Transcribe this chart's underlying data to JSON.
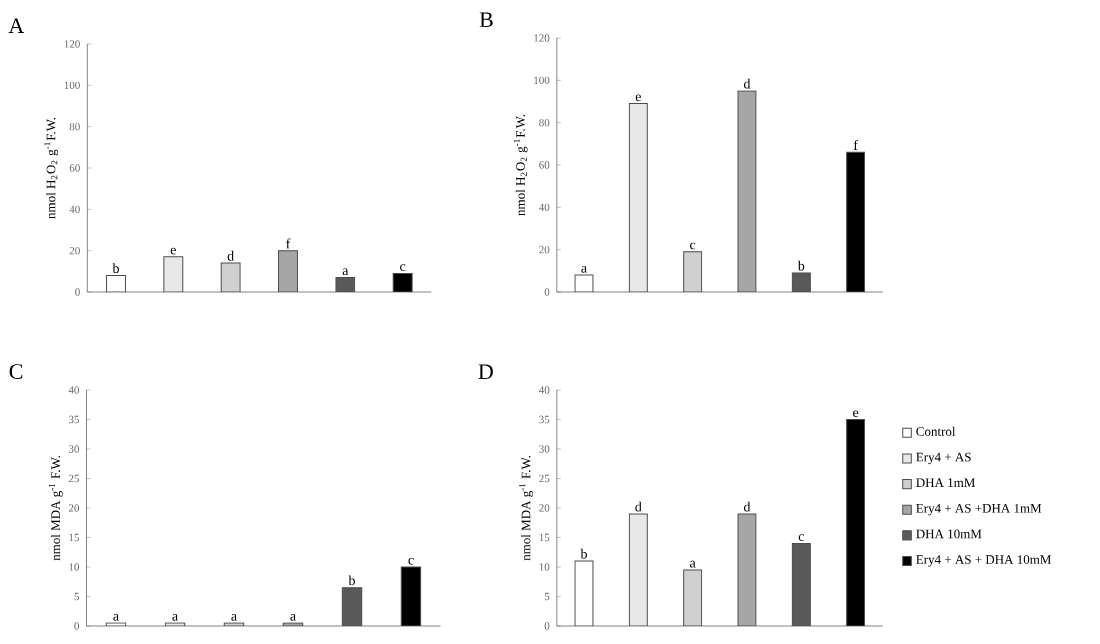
{
  "chart_data": [
    {
      "type": "bar",
      "title": "A",
      "ylabel": "nmol H$_{2}$O$_{2}$ g$^{-1}$F.W.",
      "categories": [
        null,
        null,
        null,
        null,
        null,
        null
      ],
      "ylim": [
        0,
        120
      ],
      "yticks": [
        0,
        20,
        40,
        60,
        80,
        100,
        120
      ],
      "tick_labels": "y",
      "legend": false,
      "series": [
        {
          "color": "#ffffff",
          "values": [
            8,
            null,
            null,
            null,
            null,
            null
          ],
          "value_labels": [
            "b",
            null,
            null,
            null,
            null,
            null
          ]
        },
        {
          "color": "#e8e8e8",
          "values": [
            null,
            17,
            null,
            null,
            null,
            null
          ],
          "value_labels": [
            null,
            "e",
            null,
            null,
            null,
            null
          ]
        },
        {
          "color": "#d0d0d0",
          "values": [
            null,
            null,
            14,
            null,
            null,
            null
          ],
          "value_labels": [
            null,
            null,
            "d",
            null,
            null,
            null
          ]
        },
        {
          "color": "#a6a6a6",
          "values": [
            null,
            null,
            null,
            20,
            null,
            null
          ],
          "value_labels": [
            null,
            null,
            null,
            "f",
            null,
            null
          ]
        },
        {
          "color": "#595959",
          "values": [
            null,
            null,
            null,
            null,
            7,
            null
          ],
          "value_labels": [
            null,
            null,
            null,
            null,
            "a",
            null
          ]
        },
        {
          "color": "#000000",
          "values": [
            null,
            null,
            null,
            null,
            null,
            9
          ],
          "value_labels": [
            null,
            null,
            null,
            null,
            null,
            "c"
          ]
        }
      ]
    },
    {
      "type": "bar",
      "title": "B",
      "ylabel": "nmol H$_{2}$O$_{2}$ g$^{-1}$F.W.",
      "categories": [
        null,
        null,
        null,
        null,
        null,
        null
      ],
      "ylim": [
        0,
        120
      ],
      "yticks": [
        0,
        20,
        40,
        60,
        80,
        100,
        120
      ],
      "tick_labels": "y",
      "legend": false,
      "series": [
        {
          "color": "#ffffff",
          "values": [
            8,
            null,
            null,
            null,
            null,
            null
          ],
          "value_labels": [
            "a",
            null,
            null,
            null,
            null,
            null
          ]
        },
        {
          "color": "#e8e8e8",
          "values": [
            null,
            89,
            null,
            null,
            null,
            null
          ],
          "value_labels": [
            null,
            "e",
            null,
            null,
            null,
            null
          ]
        },
        {
          "color": "#d0d0d0",
          "values": [
            null,
            null,
            19,
            null,
            null,
            null
          ],
          "value_labels": [
            null,
            null,
            "c",
            null,
            null,
            null
          ]
        },
        {
          "color": "#a6a6a6",
          "values": [
            null,
            null,
            null,
            95,
            null,
            null
          ],
          "value_labels": [
            null,
            null,
            null,
            "d",
            null,
            null
          ]
        },
        {
          "color": "#595959",
          "values": [
            null,
            null,
            null,
            null,
            9,
            null
          ],
          "value_labels": [
            null,
            null,
            null,
            null,
            "b",
            null
          ]
        },
        {
          "color": "#000000",
          "values": [
            null,
            null,
            null,
            null,
            null,
            66
          ],
          "value_labels": [
            null,
            null,
            null,
            null,
            null,
            "f"
          ]
        }
      ]
    },
    {
      "type": "bar",
      "title": "C",
      "ylabel": "nmol MDA g$^{-1}$ F.W.",
      "categories": [
        null,
        null,
        null,
        null,
        null,
        null
      ],
      "ylim": [
        0,
        40
      ],
      "yticks": [
        0,
        5,
        10,
        15,
        20,
        25,
        30,
        35,
        40
      ],
      "tick_labels": "y",
      "legend": false,
      "series": [
        {
          "color": "#ffffff",
          "values": [
            0.5,
            null,
            null,
            null,
            null,
            null
          ],
          "value_labels": [
            "a",
            null,
            null,
            null,
            null,
            null
          ]
        },
        {
          "color": "#e8e8e8",
          "values": [
            null,
            0.5,
            null,
            null,
            null,
            null
          ],
          "value_labels": [
            null,
            "a",
            null,
            null,
            null,
            null
          ]
        },
        {
          "color": "#d0d0d0",
          "values": [
            null,
            null,
            0.5,
            null,
            null,
            null
          ],
          "value_labels": [
            null,
            null,
            "a",
            null,
            null,
            null
          ]
        },
        {
          "color": "#a6a6a6",
          "values": [
            null,
            null,
            null,
            0.5,
            null,
            null
          ],
          "value_labels": [
            null,
            null,
            null,
            "a",
            null,
            null
          ]
        },
        {
          "color": "#595959",
          "values": [
            null,
            null,
            null,
            null,
            6.5,
            null
          ],
          "value_labels": [
            null,
            null,
            null,
            null,
            "b",
            null
          ]
        },
        {
          "color": "#000000",
          "values": [
            null,
            null,
            null,
            null,
            null,
            10
          ],
          "value_labels": [
            null,
            null,
            null,
            null,
            null,
            "c"
          ]
        }
      ]
    },
    {
      "type": "bar",
      "title": "D",
      "ylabel": "nmol MDA g$^{-1}$ F.W.",
      "categories": [
        null,
        null,
        null,
        null,
        null,
        null
      ],
      "ylim": [
        0,
        40
      ],
      "yticks": [
        0,
        5,
        10,
        15,
        20,
        25,
        30,
        35,
        40
      ],
      "tick_labels": "y",
      "legend": "right",
      "series": [
        {
          "name": "Control",
          "color": "#ffffff",
          "values": [
            11,
            null,
            null,
            null,
            null,
            null
          ],
          "value_labels": [
            "b",
            null,
            null,
            null,
            null,
            null
          ]
        },
        {
          "name": "Ery4 + AS",
          "color": "#e8e8e8",
          "values": [
            null,
            19,
            null,
            null,
            null,
            null
          ],
          "value_labels": [
            null,
            "d",
            null,
            null,
            null,
            null
          ]
        },
        {
          "name": "DHA 1mM",
          "color": "#d0d0d0",
          "values": [
            null,
            null,
            9.5,
            null,
            null,
            null
          ],
          "value_labels": [
            null,
            null,
            "a",
            null,
            null,
            null
          ]
        },
        {
          "name": "Ery4 + AS +DHA 1mM",
          "color": "#a6a6a6",
          "values": [
            null,
            null,
            null,
            19,
            null,
            null
          ],
          "value_labels": [
            null,
            null,
            null,
            "d",
            null,
            null
          ]
        },
        {
          "name": "DHA 10mM",
          "color": "#595959",
          "values": [
            null,
            null,
            null,
            null,
            14,
            null
          ],
          "value_labels": [
            null,
            null,
            null,
            null,
            "c",
            null
          ]
        },
        {
          "name": "Ery4 + AS + DHA 10mM",
          "color": "#000000",
          "values": [
            null,
            null,
            null,
            null,
            null,
            35
          ],
          "value_labels": [
            null,
            null,
            null,
            null,
            null,
            "e"
          ]
        }
      ]
    }
  ]
}
